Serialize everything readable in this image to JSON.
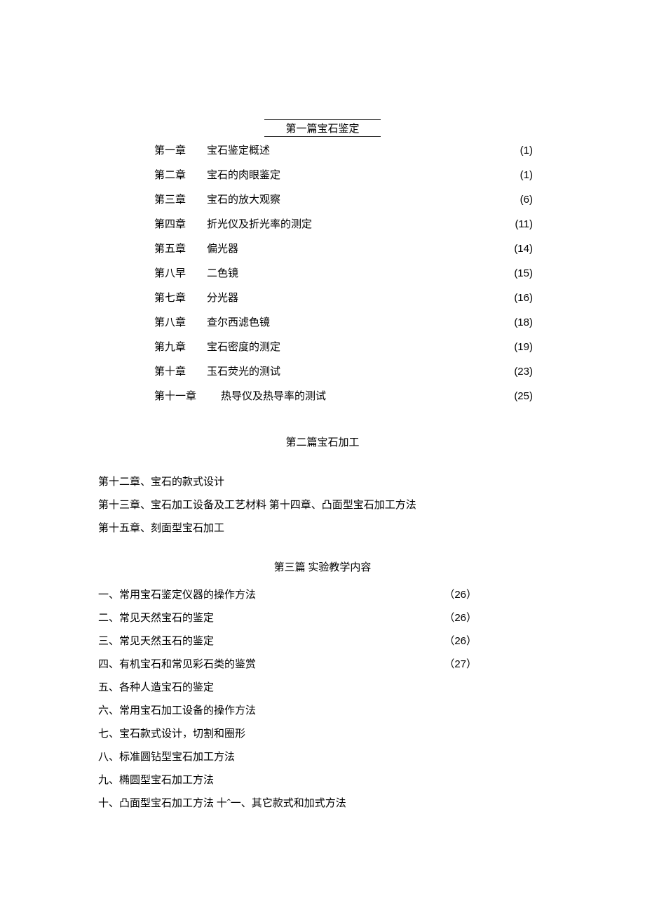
{
  "section1": {
    "title": "第一篇宝石鉴定",
    "toc": [
      {
        "chapter": "第一章",
        "title": "宝石鉴定概述",
        "page": "(1)"
      },
      {
        "chapter": "第二章",
        "title": "宝石的肉眼鉴定",
        "page": "(1)"
      },
      {
        "chapter": "第三章",
        "title": "宝石的放大观察",
        "page": "(6)"
      },
      {
        "chapter": "第四章",
        "title": "折光仪及折光率的测定",
        "page": "(11)"
      },
      {
        "chapter": "第五章",
        "title": "偏光器",
        "page": "(14)"
      },
      {
        "chapter": "第八早",
        "title": "二色镜",
        "page": "(15)"
      },
      {
        "chapter": "第七章",
        "title": "分光器",
        "page": "(16)"
      },
      {
        "chapter": "第八章",
        "title": "查尔西滤色镜",
        "page": "(18)"
      },
      {
        "chapter": "第九章",
        "title": "宝石密度的测定",
        "page": "(19)"
      },
      {
        "chapter": "第十章",
        "title": "玉石荧光的测试",
        "page": "(23)"
      },
      {
        "chapter": "第十一章",
        "title": "热导仪及热导率的测试",
        "page": "(25)"
      }
    ]
  },
  "section2": {
    "title": "第二篇宝石加工",
    "lines": [
      "第十二章、宝石的款式设计",
      "第十三章、宝石加工设备及工艺材料 第十四章、凸面型宝石加工方法",
      "第十五章、刻面型宝石加工"
    ]
  },
  "section3": {
    "title": "第三篇 实验教学内容",
    "items": [
      {
        "label": "一、",
        "content": " 常用宝石鉴定仪器的操作方法",
        "page": "（26）"
      },
      {
        "label": "二、",
        "content": "常见天然宝石的鉴定",
        "page": "（26）"
      },
      {
        "label": "三、",
        "content": "常见天然玉石的鉴定",
        "page": "（26）"
      },
      {
        "label": "四、",
        "content": "有机宝石和常见彩石类的鉴赏",
        "page": "（27）"
      },
      {
        "label": "五、",
        "content": "各种人造宝石的鉴定",
        "page": ""
      },
      {
        "label": "六、",
        "content": "常用宝石加工设备的操作方法",
        "page": ""
      },
      {
        "label": "七、",
        "content": "宝石款式设计，切割和圈形",
        "page": ""
      },
      {
        "label": "八、",
        "content": "标准圆钻型宝石加工方法",
        "page": ""
      },
      {
        "label": "九、",
        "content": "椭圆型宝石加工方法",
        "page": ""
      },
      {
        "label": "十、",
        "content": "凸面型宝石加工方法 十ˆ一、其它款式和加式方法",
        "page": ""
      }
    ]
  },
  "colors": {
    "background": "#ffffff",
    "text": "#000000",
    "border": "#333333"
  },
  "typography": {
    "font_family": "SimSun",
    "base_fontsize": 15,
    "page_font_family": "Arial"
  }
}
